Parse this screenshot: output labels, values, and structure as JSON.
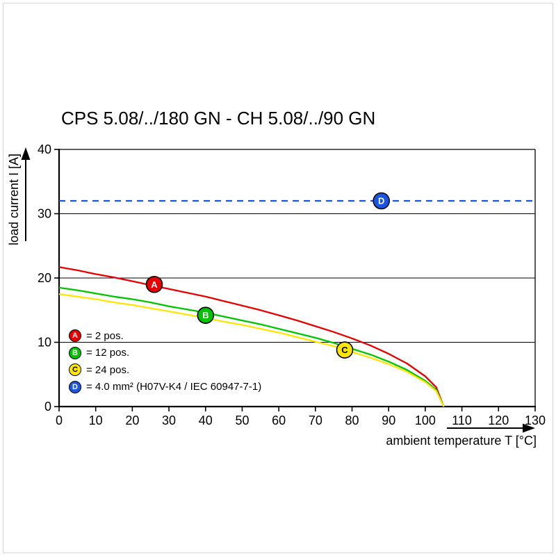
{
  "title": "CPS 5.08/../180 GN - CH 5.08/../90 GN",
  "chart_data": {
    "type": "line",
    "title": "CPS 5.08/../180 GN - CH 5.08/../90 GN",
    "xlabel": "ambient temperature T [°C]",
    "ylabel": "load current I [A]",
    "xlim": [
      0,
      130
    ],
    "ylim": [
      0,
      40
    ],
    "xticks": [
      0,
      10,
      20,
      30,
      40,
      50,
      60,
      70,
      80,
      90,
      100,
      110,
      120,
      130
    ],
    "yticks": [
      0,
      10,
      20,
      30,
      40
    ],
    "grid": "horizontal-only",
    "legend_position": "inside-lower-left",
    "series": [
      {
        "name": "D",
        "label": "= 4.0 mm² (H07V-K4 / IEC 60947-7-1)",
        "color": "#1a55e0",
        "letter_color": "#ffffff",
        "style": "dashed",
        "points": [
          [
            0,
            32
          ],
          [
            130,
            32
          ]
        ],
        "marker": {
          "x": 88,
          "y": 32,
          "letter": "D"
        }
      },
      {
        "name": "A",
        "label": "= 2 pos.",
        "color": "#e60000",
        "letter_color": "#ffffff",
        "style": "solid",
        "points": [
          [
            0,
            21.7
          ],
          [
            5,
            21.2
          ],
          [
            10,
            20.6
          ],
          [
            15,
            20.1
          ],
          [
            20,
            19.5
          ],
          [
            25,
            18.9
          ],
          [
            30,
            18.3
          ],
          [
            35,
            17.7
          ],
          [
            40,
            17.1
          ],
          [
            45,
            16.4
          ],
          [
            50,
            15.7
          ],
          [
            55,
            15.0
          ],
          [
            60,
            14.2
          ],
          [
            65,
            13.4
          ],
          [
            70,
            12.5
          ],
          [
            75,
            11.6
          ],
          [
            80,
            10.6
          ],
          [
            85,
            9.5
          ],
          [
            90,
            8.2
          ],
          [
            95,
            6.7
          ],
          [
            100,
            4.7
          ],
          [
            103,
            3.0
          ],
          [
            105,
            0
          ]
        ],
        "marker": {
          "x": 26,
          "y": 19,
          "letter": "A"
        }
      },
      {
        "name": "B",
        "label": "= 12 pos.",
        "color": "#00c300",
        "letter_color": "#ffffff",
        "style": "solid",
        "points": [
          [
            0,
            18.5
          ],
          [
            5,
            18.1
          ],
          [
            10,
            17.6
          ],
          [
            15,
            17.1
          ],
          [
            20,
            16.7
          ],
          [
            25,
            16.2
          ],
          [
            30,
            15.6
          ],
          [
            35,
            15.1
          ],
          [
            40,
            14.6
          ],
          [
            45,
            14.0
          ],
          [
            50,
            13.4
          ],
          [
            55,
            12.8
          ],
          [
            60,
            12.1
          ],
          [
            65,
            11.4
          ],
          [
            70,
            10.7
          ],
          [
            75,
            9.9
          ],
          [
            80,
            9.0
          ],
          [
            85,
            8.1
          ],
          [
            90,
            7.0
          ],
          [
            95,
            5.7
          ],
          [
            100,
            4.0
          ],
          [
            103,
            2.6
          ],
          [
            105,
            0
          ]
        ],
        "marker": {
          "x": 40,
          "y": 14.2,
          "letter": "B"
        }
      },
      {
        "name": "C",
        "label": "= 24 pos.",
        "color": "#ffe600",
        "letter_color": "#000000",
        "style": "solid",
        "points": [
          [
            0,
            17.5
          ],
          [
            5,
            17.1
          ],
          [
            10,
            16.7
          ],
          [
            15,
            16.2
          ],
          [
            20,
            15.8
          ],
          [
            25,
            15.3
          ],
          [
            30,
            14.8
          ],
          [
            35,
            14.3
          ],
          [
            40,
            13.8
          ],
          [
            45,
            13.2
          ],
          [
            50,
            12.7
          ],
          [
            55,
            12.1
          ],
          [
            60,
            11.5
          ],
          [
            65,
            10.8
          ],
          [
            70,
            10.1
          ],
          [
            75,
            9.4
          ],
          [
            80,
            8.5
          ],
          [
            85,
            7.6
          ],
          [
            90,
            6.6
          ],
          [
            95,
            5.4
          ],
          [
            100,
            3.8
          ],
          [
            103,
            2.4
          ],
          [
            105,
            0
          ]
        ],
        "marker": {
          "x": 78,
          "y": 8.8,
          "letter": "C"
        }
      }
    ],
    "legend": [
      {
        "letter": "A",
        "label": "= 2 pos.",
        "color": "#e60000",
        "letter_color": "#ffffff"
      },
      {
        "letter": "B",
        "label": "= 12 pos.",
        "color": "#00c300",
        "letter_color": "#ffffff"
      },
      {
        "letter": "C",
        "label": "= 24 pos.",
        "color": "#ffe600",
        "letter_color": "#000000"
      },
      {
        "letter": "D",
        "label": "= 4.0 mm² (H07V-K4 / IEC 60947-7-1)",
        "color": "#1a55e0",
        "letter_color": "#ffffff"
      }
    ]
  }
}
